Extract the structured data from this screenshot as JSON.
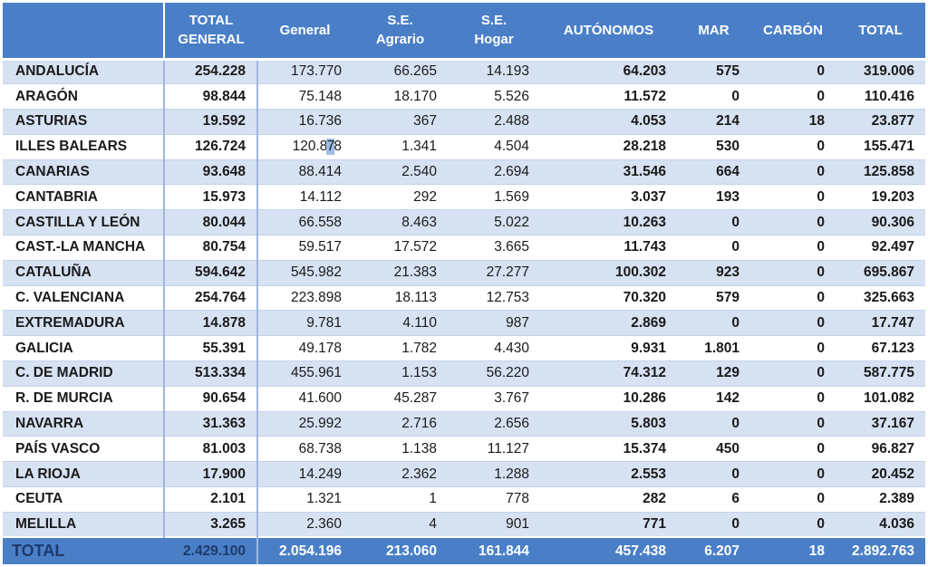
{
  "headers": [
    "",
    "TOTAL GENERAL",
    "General",
    "S.E. Agrario",
    "S.E. Hogar",
    "AUTÓNOMOS",
    "MAR",
    "CARBÓN",
    "TOTAL"
  ],
  "header_lines": [
    [
      ""
    ],
    [
      "TOTAL",
      "GENERAL"
    ],
    [
      "General"
    ],
    [
      "S.E.",
      "Agrario"
    ],
    [
      "S.E.",
      "Hogar"
    ],
    [
      "AUTÓNOMOS"
    ],
    [
      "MAR"
    ],
    [
      "CARBÓN"
    ],
    [
      "TOTAL"
    ]
  ],
  "rows": [
    [
      "ANDALUCÍA",
      "254.228",
      "173.770",
      "66.265",
      "14.193",
      "64.203",
      "575",
      "0",
      "319.006"
    ],
    [
      "ARAGÓN",
      "98.844",
      "75.148",
      "18.170",
      "5.526",
      "11.572",
      "0",
      "0",
      "110.416"
    ],
    [
      "ASTURIAS",
      "19.592",
      "16.736",
      "367",
      "2.488",
      "4.053",
      "214",
      "18",
      "23.877"
    ],
    [
      "ILLES BALEARS",
      "126.724",
      "120.878",
      "1.341",
      "4.504",
      "28.218",
      "530",
      "0",
      "155.471"
    ],
    [
      "CANARIAS",
      "93.648",
      "88.414",
      "2.540",
      "2.694",
      "31.546",
      "664",
      "0",
      "125.858"
    ],
    [
      "CANTABRIA",
      "15.973",
      "14.112",
      "292",
      "1.569",
      "3.037",
      "193",
      "0",
      "19.203"
    ],
    [
      "CASTILLA Y LEÓN",
      "80.044",
      "66.558",
      "8.463",
      "5.022",
      "10.263",
      "0",
      "0",
      "90.306"
    ],
    [
      "CAST.-LA MANCHA",
      "80.754",
      "59.517",
      "17.572",
      "3.665",
      "11.743",
      "0",
      "0",
      "92.497"
    ],
    [
      "CATALUÑA",
      "594.642",
      "545.982",
      "21.383",
      "27.277",
      "100.302",
      "923",
      "0",
      "695.867"
    ],
    [
      "C. VALENCIANA",
      "254.764",
      "223.898",
      "18.113",
      "12.753",
      "70.320",
      "579",
      "0",
      "325.663"
    ],
    [
      "EXTREMADURA",
      "14.878",
      "9.781",
      "4.110",
      "987",
      "2.869",
      "0",
      "0",
      "17.747"
    ],
    [
      "GALICIA",
      "55.391",
      "49.178",
      "1.782",
      "4.430",
      "9.931",
      "1.801",
      "0",
      "67.123"
    ],
    [
      "C. DE MADRID",
      "513.334",
      "455.961",
      "1.153",
      "56.220",
      "74.312",
      "129",
      "0",
      "587.775"
    ],
    [
      "R. DE MURCIA",
      "90.654",
      "41.600",
      "45.287",
      "3.767",
      "10.286",
      "142",
      "0",
      "101.082"
    ],
    [
      "NAVARRA",
      "31.363",
      "25.992",
      "2.716",
      "2.656",
      "5.803",
      "0",
      "0",
      "37.167"
    ],
    [
      "PAÍS VASCO",
      "81.003",
      "68.738",
      "1.138",
      "11.127",
      "15.374",
      "450",
      "0",
      "96.827"
    ],
    [
      "LA RIOJA",
      "17.900",
      "14.249",
      "2.362",
      "1.288",
      "2.553",
      "0",
      "0",
      "20.452"
    ],
    [
      "CEUTA",
      "2.101",
      "1.321",
      "1",
      "778",
      "282",
      "6",
      "0",
      "2.389"
    ],
    [
      "MELILLA",
      "3.265",
      "2.360",
      "4",
      "901",
      "771",
      "0",
      "0",
      "4.036"
    ]
  ],
  "total_row": [
    "TOTAL",
    "2.429.100",
    "2.054.196",
    "213.060",
    "161.844",
    "457.438",
    "6.207",
    "18",
    "2.892.763"
  ],
  "colors": {
    "header_bg": "#4a7fc8",
    "row_alt_bg": "#d6e1f2",
    "row_bg": "#ffffff",
    "total_label": "#1f3a6a"
  }
}
